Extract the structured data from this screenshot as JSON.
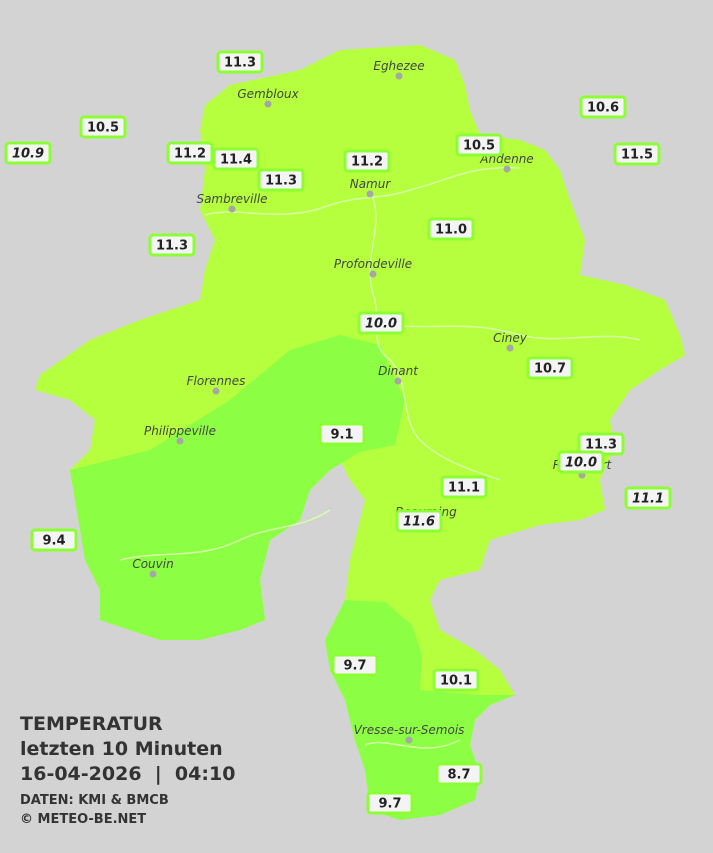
{
  "header": {
    "title": "TEMPERATUR",
    "subtitle": "letzten 10 Minuten",
    "datetime": "16-04-2026  |  04:10",
    "source": "DATEN: KMI & BMCB",
    "copyright": "© METEO-BE.NET"
  },
  "cities": [
    "Eghezee",
    "Gembloux",
    "Andenne",
    "Namur",
    "Sambreville",
    "Profondeville",
    "Ciney",
    "Dinant",
    "Florennes",
    "Philippeville",
    "Beauraing",
    "Rochefort",
    "Couvin",
    "Vresse-sur-Semois"
  ],
  "stations": [
    {
      "label": "11.3"
    },
    {
      "label": "10.5"
    },
    {
      "label": "10.9",
      "italic": true
    },
    {
      "label": "11.2"
    },
    {
      "label": "11.4"
    },
    {
      "label": "11.3"
    },
    {
      "label": "11.2"
    },
    {
      "label": "10.5"
    },
    {
      "label": "10.6"
    },
    {
      "label": "11.5"
    },
    {
      "label": "11.3"
    },
    {
      "label": "11.0"
    },
    {
      "label": "10.0",
      "italic": true
    },
    {
      "label": "10.7"
    },
    {
      "label": "9.1"
    },
    {
      "label": "11.3"
    },
    {
      "label": "10.0",
      "italic": true
    },
    {
      "label": "11.1"
    },
    {
      "label": "11.1",
      "italic": true
    },
    {
      "label": "11.6",
      "italic": true
    },
    {
      "label": "9.4"
    },
    {
      "label": "9.7"
    },
    {
      "label": "10.1"
    },
    {
      "label": "8.7"
    },
    {
      "label": "9.7"
    }
  ]
}
